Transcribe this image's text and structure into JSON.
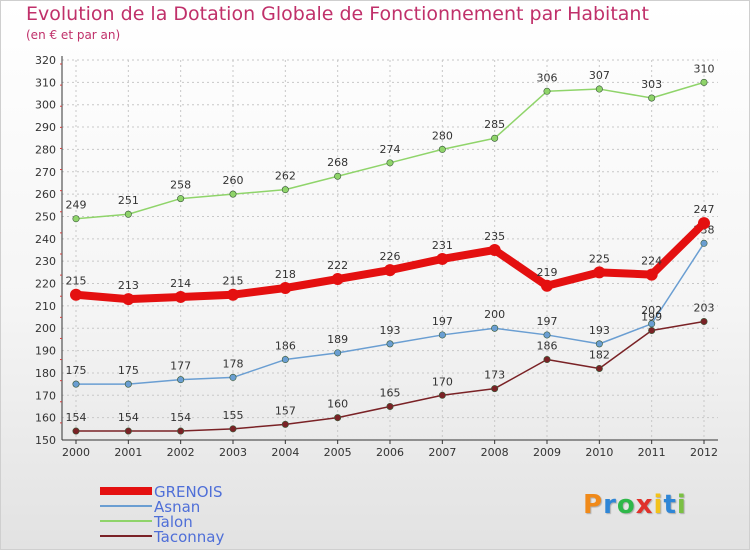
{
  "header": {
    "title": "Evolution de la Dotation Globale de Fonctionnement par Habitant",
    "subtitle": "(en € et par an)"
  },
  "logo": {
    "text": "Proxiti",
    "colors": [
      "#f08a1a",
      "#2f86d6",
      "#2fb84a",
      "#e0322b",
      "#f2c21a",
      "#2f86d6",
      "#7bc043"
    ]
  },
  "chart_data": {
    "type": "line",
    "title": "Evolution de la Dotation Globale de Fonctionnement par Habitant",
    "subtitle": "(en € et par an)",
    "x": [
      "2000",
      "2001",
      "2002",
      "2003",
      "2004",
      "2005",
      "2006",
      "2007",
      "2008",
      "2009",
      "2010",
      "2011",
      "2012"
    ],
    "ylim": [
      150,
      320
    ],
    "yticks": [
      150,
      160,
      170,
      180,
      190,
      200,
      210,
      220,
      230,
      240,
      250,
      260,
      270,
      280,
      290,
      300,
      310,
      320
    ],
    "grid": true,
    "legend": "bottom-left",
    "series": [
      {
        "name": "GRENOIS",
        "color": "#e41010",
        "emphasis": true,
        "values": [
          215,
          213,
          214,
          215,
          218,
          222,
          226,
          231,
          235,
          219,
          225,
          224,
          247
        ]
      },
      {
        "name": "Asnan",
        "color": "#6a9ed2",
        "values": [
          175,
          175,
          177,
          178,
          186,
          189,
          193,
          197,
          200,
          197,
          193,
          202,
          238
        ]
      },
      {
        "name": "Talon",
        "color": "#8fd46a",
        "values": [
          249,
          251,
          258,
          260,
          262,
          268,
          274,
          280,
          285,
          306,
          307,
          303,
          310
        ]
      },
      {
        "name": "Taconnay",
        "color": "#7a2226",
        "values": [
          154,
          154,
          154,
          155,
          157,
          160,
          165,
          170,
          173,
          186,
          182,
          199,
          203
        ]
      }
    ]
  }
}
